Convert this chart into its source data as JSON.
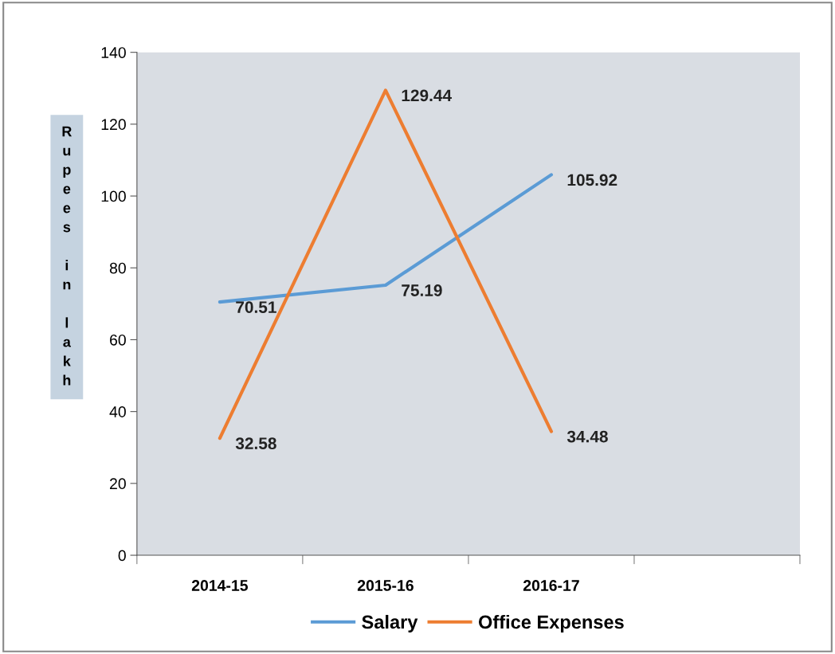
{
  "chart_data": {
    "type": "line",
    "ylabel": "Rupees in lakh",
    "categories": [
      "2014-15",
      "2015-16",
      "2016-17",
      null
    ],
    "series": [
      {
        "name": "Salary",
        "color": "#5b9bd5",
        "values": [
          70.51,
          75.19,
          105.92,
          null
        ]
      },
      {
        "name": "Office Expenses",
        "color": "#ed7d31",
        "values": [
          32.58,
          129.44,
          34.48,
          null
        ]
      }
    ],
    "ylim": [
      0,
      140
    ],
    "yticks": [
      0,
      20,
      40,
      60,
      80,
      100,
      120,
      140
    ],
    "data_labels": true,
    "legend": "bottom",
    "grid": false,
    "marker": "none",
    "line_style": "solid"
  }
}
